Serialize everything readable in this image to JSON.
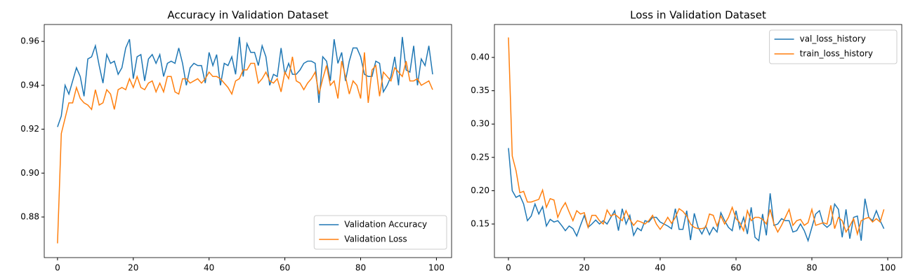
{
  "chart_data": [
    {
      "type": "line",
      "title": "Accuracy in Validation Dataset",
      "x": [
        0,
        1,
        2,
        3,
        4,
        5,
        6,
        7,
        8,
        9,
        10,
        11,
        12,
        13,
        14,
        15,
        16,
        17,
        18,
        19,
        20,
        21,
        22,
        23,
        24,
        25,
        26,
        27,
        28,
        29,
        30,
        31,
        32,
        33,
        34,
        35,
        36,
        37,
        38,
        39,
        40,
        41,
        42,
        43,
        44,
        45,
        46,
        47,
        48,
        49,
        50,
        51,
        52,
        53,
        54,
        55,
        56,
        57,
        58,
        59,
        60,
        61,
        62,
        63,
        64,
        65,
        66,
        67,
        68,
        69,
        70,
        71,
        72,
        73,
        74,
        75,
        76,
        77,
        78,
        79,
        80,
        81,
        82,
        83,
        84,
        85,
        86,
        87,
        88,
        89,
        90,
        91,
        92,
        93,
        94,
        95,
        96,
        97,
        98,
        99
      ],
      "xlim": [
        -3.5,
        104
      ],
      "ylim": [
        0.8615,
        0.9677
      ],
      "xticks": [
        0,
        20,
        40,
        60,
        80,
        100
      ],
      "yticks": [
        0.88,
        {
          "value": 0.9,
          "label": "0.90"
        },
        0.92,
        0.94,
        0.96
      ],
      "legend": "lower right",
      "grid": false,
      "series": [
        {
          "name": "Validation Accuracy",
          "color": "#1f77b4",
          "values": [
            0.921,
            0.926,
            0.94,
            0.936,
            0.942,
            0.948,
            0.944,
            0.935,
            0.952,
            0.953,
            0.958,
            0.949,
            0.941,
            0.954,
            0.95,
            0.951,
            0.945,
            0.948,
            0.957,
            0.961,
            0.943,
            0.953,
            0.954,
            0.942,
            0.952,
            0.954,
            0.95,
            0.954,
            0.944,
            0.95,
            0.951,
            0.95,
            0.957,
            0.95,
            0.94,
            0.948,
            0.95,
            0.949,
            0.949,
            0.941,
            0.955,
            0.949,
            0.954,
            0.94,
            0.95,
            0.949,
            0.953,
            0.945,
            0.962,
            0.944,
            0.959,
            0.955,
            0.955,
            0.949,
            0.958,
            0.953,
            0.94,
            0.945,
            0.944,
            0.957,
            0.945,
            0.95,
            0.945,
            0.945,
            0.947,
            0.95,
            0.951,
            0.951,
            0.95,
            0.932,
            0.953,
            0.951,
            0.942,
            0.961,
            0.95,
            0.955,
            0.942,
            0.951,
            0.957,
            0.957,
            0.953,
            0.945,
            0.944,
            0.944,
            0.951,
            0.95,
            0.937,
            0.94,
            0.944,
            0.953,
            0.94,
            0.962,
            0.947,
            0.946,
            0.958,
            0.94,
            0.952,
            0.949,
            0.958,
            0.945
          ]
        },
        {
          "name": "Validation Loss",
          "color": "#ff7f0e",
          "values": [
            0.868,
            0.918,
            0.925,
            0.932,
            0.932,
            0.939,
            0.934,
            0.932,
            0.931,
            0.929,
            0.938,
            0.931,
            0.932,
            0.938,
            0.936,
            0.929,
            0.938,
            0.939,
            0.938,
            0.943,
            0.939,
            0.944,
            0.939,
            0.938,
            0.941,
            0.942,
            0.937,
            0.941,
            0.937,
            0.944,
            0.944,
            0.937,
            0.936,
            0.943,
            0.943,
            0.941,
            0.942,
            0.943,
            0.941,
            0.943,
            0.946,
            0.944,
            0.944,
            0.943,
            0.941,
            0.939,
            0.936,
            0.942,
            0.943,
            0.947,
            0.947,
            0.95,
            0.95,
            0.941,
            0.943,
            0.946,
            0.942,
            0.941,
            0.943,
            0.937,
            0.946,
            0.943,
            0.953,
            0.942,
            0.941,
            0.938,
            0.941,
            0.943,
            0.946,
            0.936,
            0.943,
            0.949,
            0.94,
            0.942,
            0.934,
            0.951,
            0.944,
            0.936,
            0.942,
            0.94,
            0.934,
            0.955,
            0.932,
            0.947,
            0.949,
            0.935,
            0.946,
            0.944,
            0.942,
            0.948,
            0.946,
            0.944,
            0.951,
            0.942,
            0.942,
            0.943,
            0.94,
            0.941,
            0.942,
            0.938
          ]
        }
      ]
    },
    {
      "type": "line",
      "title": "Loss in Validation Dataset",
      "x": [
        0,
        1,
        2,
        3,
        4,
        5,
        6,
        7,
        8,
        9,
        10,
        11,
        12,
        13,
        14,
        15,
        16,
        17,
        18,
        19,
        20,
        21,
        22,
        23,
        24,
        25,
        26,
        27,
        28,
        29,
        30,
        31,
        32,
        33,
        34,
        35,
        36,
        37,
        38,
        39,
        40,
        41,
        42,
        43,
        44,
        45,
        46,
        47,
        48,
        49,
        50,
        51,
        52,
        53,
        54,
        55,
        56,
        57,
        58,
        59,
        60,
        61,
        62,
        63,
        64,
        65,
        66,
        67,
        68,
        69,
        70,
        71,
        72,
        73,
        74,
        75,
        76,
        77,
        78,
        79,
        80,
        81,
        82,
        83,
        84,
        85,
        86,
        87,
        88,
        89,
        90,
        91,
        92,
        93,
        94,
        95,
        96,
        97,
        98,
        99
      ],
      "xlim": [
        -3.7,
        103.7
      ],
      "ylim": [
        0.0996,
        0.4494
      ],
      "xticks": [
        0,
        20,
        40,
        60,
        80,
        100
      ],
      "yticks": [
        0.15,
        {
          "value": 0.2,
          "label": "0.20"
        },
        0.25,
        {
          "value": 0.3,
          "label": "0.30"
        },
        0.35,
        {
          "value": 0.4,
          "label": "0.40"
        }
      ],
      "legend": "upper right",
      "grid": false,
      "series": [
        {
          "name": "val_loss_history",
          "color": "#1f77b4",
          "values": [
            0.264,
            0.2,
            0.19,
            0.193,
            0.18,
            0.155,
            0.162,
            0.18,
            0.165,
            0.176,
            0.147,
            0.157,
            0.153,
            0.155,
            0.148,
            0.14,
            0.147,
            0.143,
            0.132,
            0.148,
            0.163,
            0.145,
            0.15,
            0.156,
            0.15,
            0.155,
            0.15,
            0.16,
            0.17,
            0.14,
            0.173,
            0.15,
            0.163,
            0.133,
            0.144,
            0.14,
            0.155,
            0.153,
            0.16,
            0.16,
            0.153,
            0.15,
            0.147,
            0.143,
            0.173,
            0.142,
            0.142,
            0.17,
            0.126,
            0.166,
            0.145,
            0.135,
            0.147,
            0.134,
            0.145,
            0.138,
            0.167,
            0.155,
            0.145,
            0.14,
            0.17,
            0.143,
            0.16,
            0.135,
            0.175,
            0.13,
            0.125,
            0.165,
            0.133,
            0.196,
            0.148,
            0.15,
            0.158,
            0.155,
            0.155,
            0.138,
            0.14,
            0.15,
            0.14,
            0.125,
            0.145,
            0.165,
            0.17,
            0.15,
            0.145,
            0.15,
            0.18,
            0.172,
            0.13,
            0.172,
            0.128,
            0.16,
            0.162,
            0.125,
            0.188,
            0.16,
            0.155,
            0.17,
            0.155,
            0.143
          ]
        },
        {
          "name": "train_loss_history",
          "color": "#ff7f0e",
          "values": [
            0.43,
            0.252,
            0.23,
            0.197,
            0.199,
            0.183,
            0.183,
            0.185,
            0.187,
            0.201,
            0.175,
            0.188,
            0.186,
            0.16,
            0.173,
            0.182,
            0.168,
            0.155,
            0.17,
            0.165,
            0.167,
            0.145,
            0.163,
            0.163,
            0.155,
            0.15,
            0.171,
            0.162,
            0.165,
            0.16,
            0.155,
            0.17,
            0.157,
            0.148,
            0.155,
            0.153,
            0.15,
            0.155,
            0.163,
            0.15,
            0.142,
            0.15,
            0.16,
            0.151,
            0.16,
            0.173,
            0.169,
            0.162,
            0.15,
            0.145,
            0.143,
            0.143,
            0.145,
            0.165,
            0.163,
            0.147,
            0.162,
            0.15,
            0.16,
            0.175,
            0.158,
            0.152,
            0.14,
            0.17,
            0.155,
            0.16,
            0.16,
            0.157,
            0.15,
            0.172,
            0.15,
            0.138,
            0.148,
            0.16,
            0.172,
            0.148,
            0.155,
            0.157,
            0.148,
            0.152,
            0.172,
            0.148,
            0.15,
            0.152,
            0.15,
            0.178,
            0.143,
            0.16,
            0.155,
            0.138,
            0.147,
            0.158,
            0.135,
            0.155,
            0.158,
            0.16,
            0.153,
            0.158,
            0.153,
            0.172
          ]
        }
      ]
    }
  ]
}
